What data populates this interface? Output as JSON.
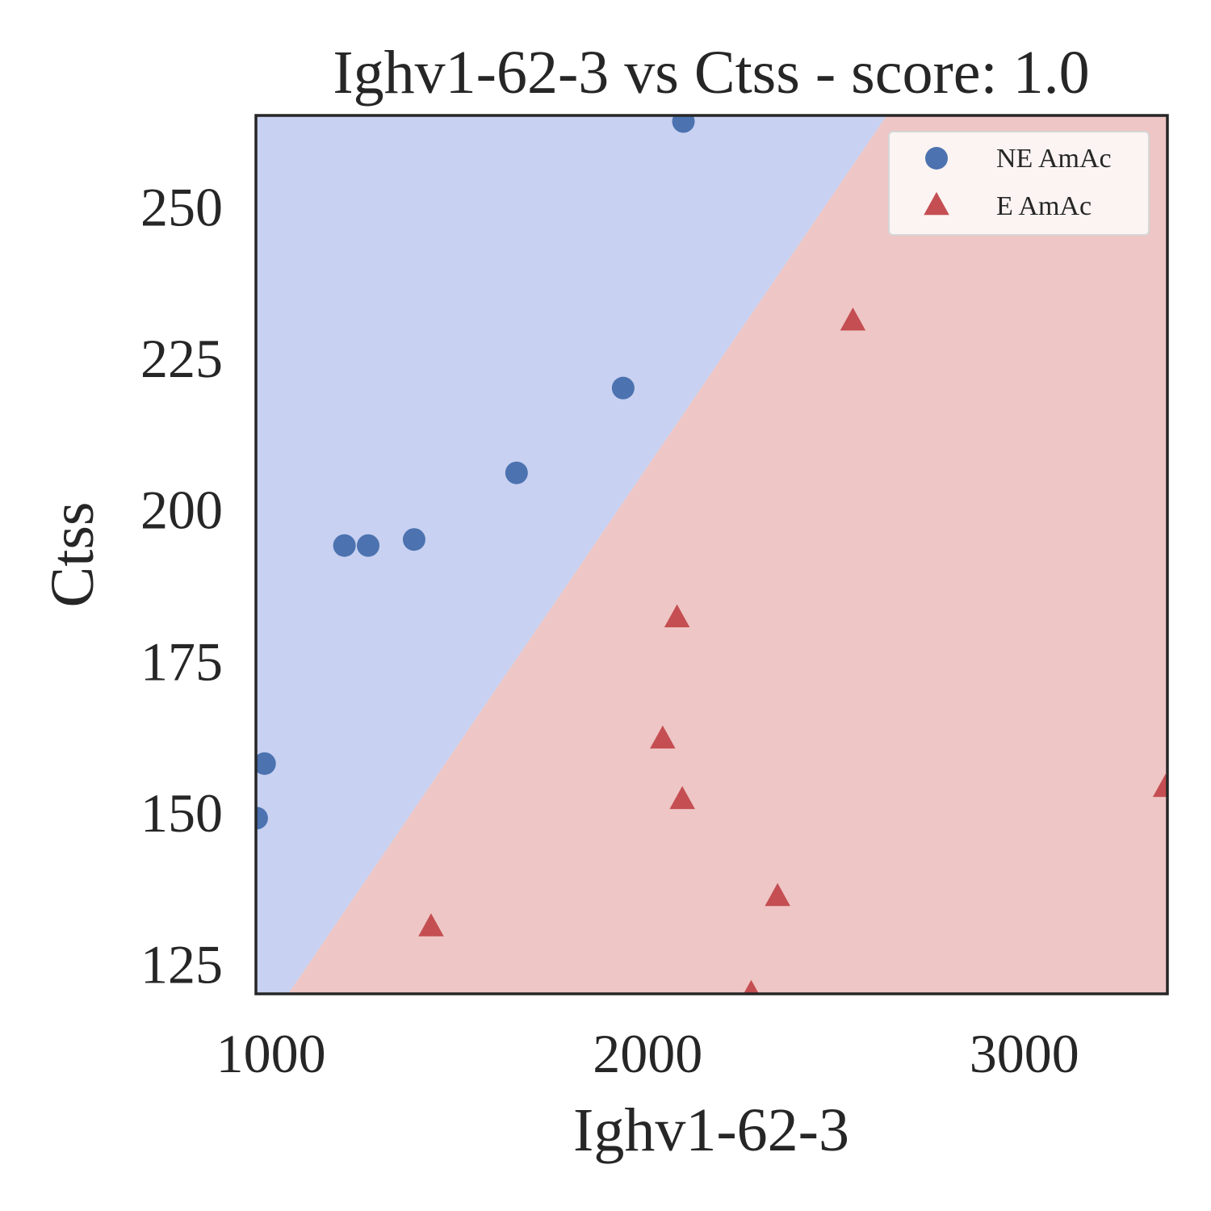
{
  "chart_data": {
    "type": "scatter",
    "title": "Ighv1-62-3 vs Ctss - score: 1.0",
    "xlabel": "Ighv1-62-3",
    "ylabel": "Ctss",
    "xlim": [
      960,
      3380
    ],
    "ylim": [
      120,
      265
    ],
    "x_ticks": [
      1000,
      2000,
      3000
    ],
    "y_ticks": [
      125,
      150,
      175,
      200,
      225,
      250
    ],
    "grid": false,
    "legend_position": "top-right",
    "decision_boundary": {
      "points": [
        [
          1046,
          120
        ],
        [
          2635,
          265
        ]
      ],
      "region_colors": {
        "above": "#c8d1f1",
        "below": "#eec6c5"
      }
    },
    "series": [
      {
        "name": "NE AmAc",
        "marker": "circle",
        "color": "#4c72b0",
        "points": [
          [
            2095,
            264
          ],
          [
            1935,
            220
          ],
          [
            1652,
            206
          ],
          [
            1380,
            195
          ],
          [
            1258,
            194
          ],
          [
            1195,
            194
          ],
          [
            983,
            158
          ],
          [
            962,
            149
          ]
        ]
      },
      {
        "name": "E AmAc",
        "marker": "triangle",
        "color": "#c44e52",
        "points": [
          [
            2545,
            231
          ],
          [
            2078,
            182
          ],
          [
            2040,
            162
          ],
          [
            2092,
            152
          ],
          [
            3375,
            154
          ],
          [
            2345,
            136
          ],
          [
            1425,
            131
          ],
          [
            2275,
            120
          ]
        ]
      }
    ]
  }
}
